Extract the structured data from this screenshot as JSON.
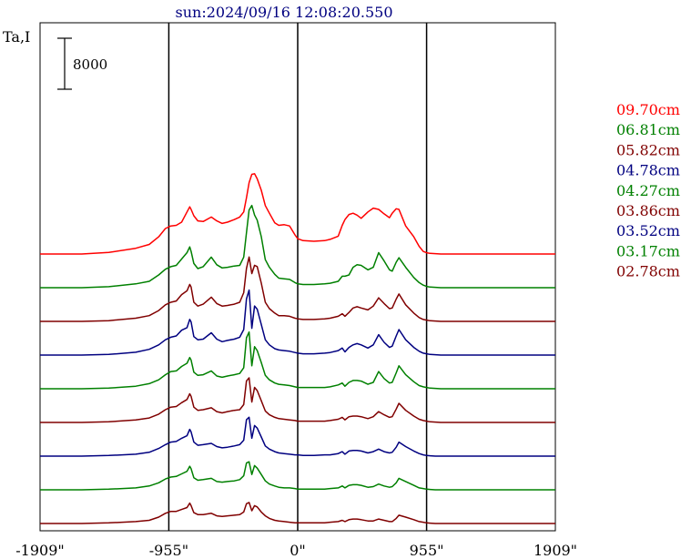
{
  "chart_data": {
    "type": "line",
    "title": "sun:2024/09/16 12:08:20.550",
    "ylabel": "Ta,I",
    "scale_bar_label": "8000",
    "x_tick_labels": [
      "-1909\"",
      "-955\"",
      "0\"",
      "955\"",
      "1909\""
    ],
    "x_ticks": [
      -1909,
      -955,
      0,
      955,
      1909
    ],
    "xlim": [
      -1909,
      1909
    ],
    "vertical_lines": [
      -955,
      0,
      955
    ],
    "x_sample": [
      -1909,
      -1800,
      -1600,
      -1400,
      -1200,
      -1100,
      -1030,
      -980,
      -940,
      -900,
      -860,
      -820,
      -800,
      -790,
      -770,
      -740,
      -700,
      -640,
      -600,
      -560,
      -520,
      -470,
      -430,
      -400,
      -380,
      -360,
      -340,
      -320,
      -300,
      -270,
      -240,
      -210,
      -170,
      -140,
      -100,
      -60,
      -20,
      0,
      40,
      120,
      200,
      240,
      300,
      330,
      350,
      380,
      410,
      440,
      470,
      520,
      560,
      600,
      640,
      680,
      700,
      730,
      750,
      800,
      860,
      900,
      930,
      955,
      980,
      1020,
      1060,
      1100,
      1150,
      1200,
      1300,
      1500,
      1700,
      1909
    ],
    "series": [
      {
        "name": "09.70cm",
        "color": "#ff0000",
        "values": [
          0,
          0,
          0,
          250,
          900,
          1500,
          2700,
          4000,
          4400,
          4500,
          5000,
          6600,
          7400,
          7000,
          6000,
          5200,
          5100,
          5800,
          5200,
          4800,
          5000,
          5400,
          5800,
          6600,
          8800,
          11200,
          12500,
          12600,
          11800,
          10000,
          7600,
          6400,
          4900,
          4500,
          4600,
          4400,
          3000,
          2400,
          2100,
          2000,
          2100,
          2300,
          2800,
          4500,
          5400,
          6200,
          6400,
          6100,
          5600,
          6600,
          7200,
          7000,
          6300,
          5700,
          6400,
          7100,
          7000,
          4400,
          2700,
          1200,
          400,
          200,
          100,
          50,
          0,
          0,
          0,
          0,
          0,
          0,
          0,
          0
        ]
      },
      {
        "name": "06.81cm",
        "color": "#008000",
        "values": [
          0,
          0,
          0,
          150,
          600,
          1000,
          2000,
          2900,
          3300,
          3500,
          4500,
          5500,
          6400,
          5700,
          3800,
          3000,
          3300,
          4800,
          3600,
          3100,
          3200,
          3400,
          3500,
          4800,
          8600,
          12200,
          12900,
          11400,
          10600,
          8000,
          4400,
          3200,
          2100,
          1500,
          1400,
          1300,
          800,
          600,
          500,
          500,
          600,
          700,
          1000,
          1800,
          1800,
          2000,
          3200,
          3600,
          3500,
          2800,
          3200,
          5500,
          4200,
          2800,
          2600,
          4000,
          4700,
          3200,
          1600,
          800,
          400,
          200,
          100,
          50,
          0,
          0,
          0,
          0,
          0,
          0,
          0,
          0
        ]
      },
      {
        "name": "05.82cm",
        "color": "#800000",
        "values": [
          0,
          0,
          0,
          120,
          500,
          900,
          1700,
          2600,
          3000,
          3200,
          4200,
          4800,
          5800,
          5400,
          3000,
          2400,
          2700,
          3800,
          2800,
          2400,
          2500,
          2700,
          3000,
          4500,
          8300,
          10100,
          7500,
          8800,
          8600,
          6000,
          3000,
          2000,
          1300,
          900,
          900,
          800,
          500,
          400,
          300,
          300,
          400,
          500,
          800,
          1200,
          800,
          1400,
          2100,
          2300,
          2100,
          1800,
          2400,
          3700,
          2800,
          2000,
          2100,
          3500,
          4300,
          2600,
          1300,
          600,
          300,
          200,
          100,
          50,
          0,
          0,
          0,
          0,
          0,
          0,
          0,
          0
        ]
      },
      {
        "name": "04.78cm",
        "color": "#000080",
        "values": [
          0,
          0,
          0,
          100,
          450,
          900,
          1600,
          2400,
          2800,
          3000,
          3900,
          4300,
          5600,
          5200,
          2900,
          2400,
          2500,
          3500,
          2500,
          2100,
          2300,
          2500,
          2800,
          4000,
          8800,
          10200,
          4200,
          7700,
          7200,
          4800,
          2400,
          1600,
          1000,
          800,
          700,
          600,
          400,
          300,
          200,
          200,
          300,
          400,
          700,
          1100,
          500,
          1200,
          1600,
          1800,
          1600,
          1100,
          1600,
          3200,
          2000,
          1200,
          1400,
          3000,
          4000,
          2400,
          1200,
          600,
          300,
          200,
          100,
          50,
          0,
          0,
          0,
          0,
          0,
          0,
          0,
          0
        ]
      },
      {
        "name": "04.27cm",
        "color": "#008000",
        "values": [
          0,
          0,
          0,
          100,
          400,
          800,
          1400,
          2200,
          2700,
          2800,
          3500,
          4000,
          4900,
          4500,
          2600,
          2100,
          2200,
          2800,
          2000,
          1800,
          2000,
          2200,
          2400,
          3300,
          8000,
          8900,
          3600,
          6600,
          6000,
          4100,
          2100,
          1400,
          900,
          700,
          600,
          500,
          300,
          200,
          200,
          200,
          200,
          300,
          600,
          900,
          400,
          1000,
          1300,
          1300,
          1200,
          700,
          1000,
          2700,
          1600,
          900,
          1000,
          2500,
          3600,
          2200,
          1100,
          500,
          300,
          200,
          100,
          50,
          0,
          0,
          0,
          0,
          0,
          0,
          0,
          0
        ]
      },
      {
        "name": "03.86cm",
        "color": "#800000",
        "values": [
          0,
          0,
          0,
          100,
          400,
          700,
          1300,
          2000,
          2400,
          2500,
          3100,
          3600,
          4500,
          4100,
          2400,
          1900,
          2000,
          2300,
          1700,
          1500,
          1700,
          1900,
          2000,
          2800,
          6500,
          7000,
          3200,
          5500,
          5000,
          3400,
          1800,
          1200,
          800,
          600,
          500,
          400,
          300,
          200,
          200,
          200,
          200,
          300,
          500,
          800,
          400,
          900,
          1000,
          1000,
          900,
          600,
          900,
          1700,
          1200,
          800,
          900,
          2100,
          3000,
          1900,
          1000,
          500,
          300,
          200,
          100,
          50,
          0,
          0,
          0,
          0,
          0,
          0,
          0,
          0
        ]
      },
      {
        "name": "03.52cm",
        "color": "#000080",
        "values": [
          0,
          0,
          0,
          100,
          300,
          600,
          1200,
          1800,
          2200,
          2300,
          2800,
          3200,
          4200,
          3800,
          2200,
          1700,
          1800,
          2000,
          1500,
          1300,
          1400,
          1600,
          1800,
          2500,
          5700,
          6100,
          2800,
          4800,
          4400,
          3000,
          1600,
          1100,
          700,
          500,
          400,
          300,
          200,
          200,
          100,
          100,
          200,
          200,
          400,
          700,
          300,
          800,
          900,
          900,
          800,
          500,
          700,
          1100,
          700,
          500,
          600,
          1400,
          2200,
          1500,
          800,
          400,
          200,
          100,
          50,
          0,
          0,
          0,
          0,
          0,
          0,
          0,
          0,
          0
        ]
      },
      {
        "name": "03.17cm",
        "color": "#008000",
        "values": [
          0,
          0,
          0,
          100,
          300,
          600,
          1100,
          1700,
          2000,
          2100,
          2500,
          2900,
          3700,
          3300,
          1900,
          1500,
          1600,
          1800,
          1300,
          1200,
          1300,
          1400,
          1600,
          2200,
          4200,
          4400,
          2400,
          3800,
          3400,
          2400,
          1400,
          900,
          600,
          400,
          300,
          300,
          200,
          100,
          100,
          100,
          100,
          200,
          300,
          600,
          300,
          700,
          800,
          800,
          700,
          400,
          500,
          900,
          600,
          400,
          500,
          1100,
          1800,
          1300,
          700,
          300,
          200,
          100,
          50,
          0,
          0,
          0,
          0,
          0,
          0,
          0,
          0,
          0
        ]
      },
      {
        "name": "02.78cm",
        "color": "#800000",
        "values": [
          0,
          0,
          0,
          100,
          300,
          500,
          1000,
          1600,
          1900,
          1900,
          2200,
          2500,
          3200,
          2800,
          1700,
          1400,
          1400,
          1600,
          1200,
          1100,
          1200,
          1300,
          1400,
          1800,
          3100,
          3300,
          2000,
          2800,
          2600,
          1800,
          1200,
          800,
          500,
          400,
          300,
          200,
          100,
          100,
          100,
          100,
          100,
          200,
          300,
          500,
          300,
          600,
          700,
          700,
          600,
          400,
          400,
          700,
          500,
          300,
          300,
          800,
          1300,
          1000,
          600,
          300,
          200,
          100,
          50,
          0,
          0,
          0,
          0,
          0,
          0,
          0,
          0,
          0
        ]
      }
    ]
  }
}
